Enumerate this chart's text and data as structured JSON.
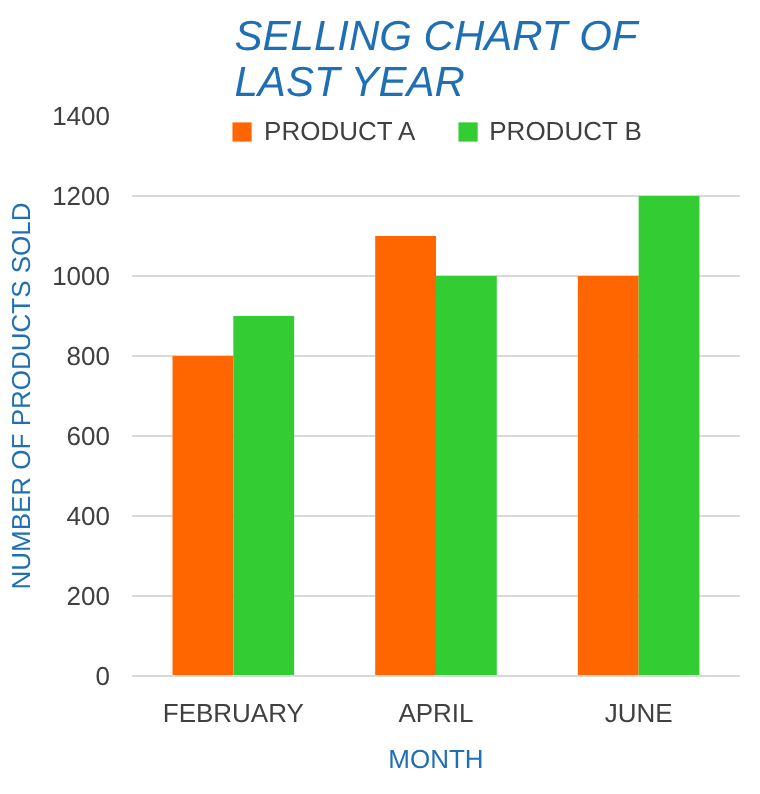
{
  "chart_data": {
    "type": "bar",
    "title": "SELLING CHART OF LAST YEAR",
    "xlabel": "MONTH",
    "ylabel": "NUMBER OF PRODUCTS SOLD",
    "categories": [
      "FEBRUARY",
      "APRIL",
      "JUNE"
    ],
    "series": [
      {
        "name": "PRODUCT A",
        "color": "#ff6600",
        "values": [
          800,
          1100,
          1000
        ]
      },
      {
        "name": "PRODUCT B",
        "color": "#33cc33",
        "values": [
          900,
          1000,
          1200
        ]
      }
    ],
    "ylim": [
      0,
      1400
    ],
    "yticks": [
      0,
      200,
      400,
      600,
      800,
      1000,
      1200,
      1400
    ],
    "grid": "y",
    "legend": "top"
  }
}
